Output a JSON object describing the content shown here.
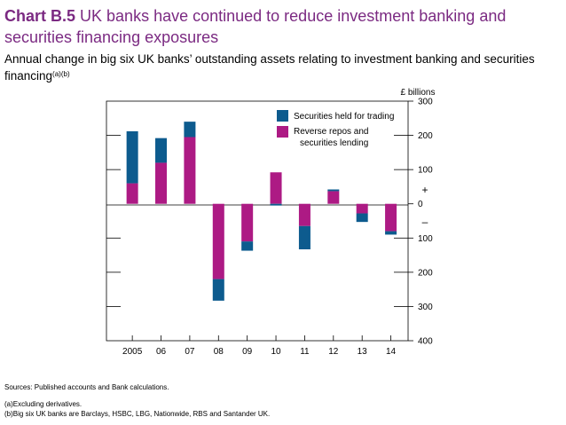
{
  "header": {
    "label": "Chart B.5",
    "title": "UK banks have continued to reduce investment banking and securities financing exposures",
    "subtitle": "Annual change in big six UK banks’ outstanding assets relating to investment banking and securities financing",
    "subtitle_refs": "(a)(b)"
  },
  "chart_data": {
    "type": "bar",
    "stacked": true,
    "categories": [
      "2005",
      "06",
      "07",
      "08",
      "09",
      "10",
      "11",
      "12",
      "13",
      "14"
    ],
    "series": [
      {
        "name": "Reverse repos and securities lending",
        "color": "#ad1a84",
        "values": [
          60,
          120,
          195,
          -220,
          -110,
          92,
          -65,
          37,
          -28,
          -80
        ]
      },
      {
        "name": "Securities held for trading",
        "color": "#0d5b8e",
        "values": [
          152,
          72,
          45,
          -63,
          -27,
          -5,
          -68,
          5,
          -25,
          -10
        ]
      }
    ],
    "legend": [
      "Securities held for trading",
      "Reverse repos and securities lending"
    ],
    "unit_label": "£ billions",
    "ylim": [
      -400,
      300
    ],
    "yticks": [
      {
        "value": 300,
        "label": "300"
      },
      {
        "value": 200,
        "label": "200"
      },
      {
        "value": 100,
        "label": "100"
      },
      {
        "value": 0,
        "label": "0"
      },
      {
        "value": -100,
        "label": "100"
      },
      {
        "value": -200,
        "label": "200"
      },
      {
        "value": -300,
        "label": "300"
      },
      {
        "value": -400,
        "label": "400"
      }
    ],
    "plus_sign": "+",
    "minus_sign": "–"
  },
  "notes": {
    "sources": "Sources: Published accounts and Bank calculations.",
    "a": "(a)Excluding derivatives.",
    "b": "(b)Big six UK banks are Barclays, HSBC, LBG, Nationwide, RBS and Santander UK."
  }
}
